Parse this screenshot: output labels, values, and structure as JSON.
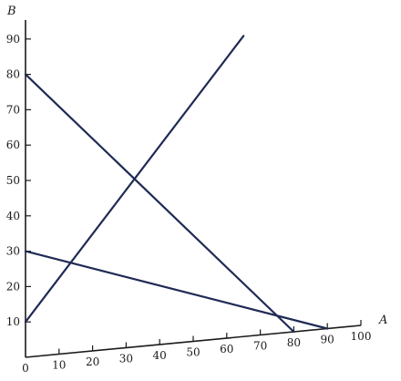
{
  "chart_data": {
    "type": "line",
    "title": "",
    "xlabel": "A",
    "ylabel": "B",
    "xlim": [
      0,
      100
    ],
    "ylim": [
      0,
      95
    ],
    "x_ticks": [
      0,
      10,
      20,
      30,
      40,
      50,
      60,
      70,
      80,
      90,
      100
    ],
    "y_ticks": [
      10,
      20,
      30,
      40,
      50,
      60,
      70,
      80,
      90
    ],
    "grid": false,
    "series": [
      {
        "points": [
          [
            0,
            80
          ],
          [
            80,
            0
          ]
        ],
        "color": "#1f2a55"
      },
      {
        "points": [
          [
            0,
            30
          ],
          [
            90,
            0
          ]
        ],
        "color": "#1f2a55"
      },
      {
        "points": [
          [
            0,
            10
          ],
          [
            65,
            85
          ]
        ],
        "color": "#1f2a55"
      }
    ]
  }
}
